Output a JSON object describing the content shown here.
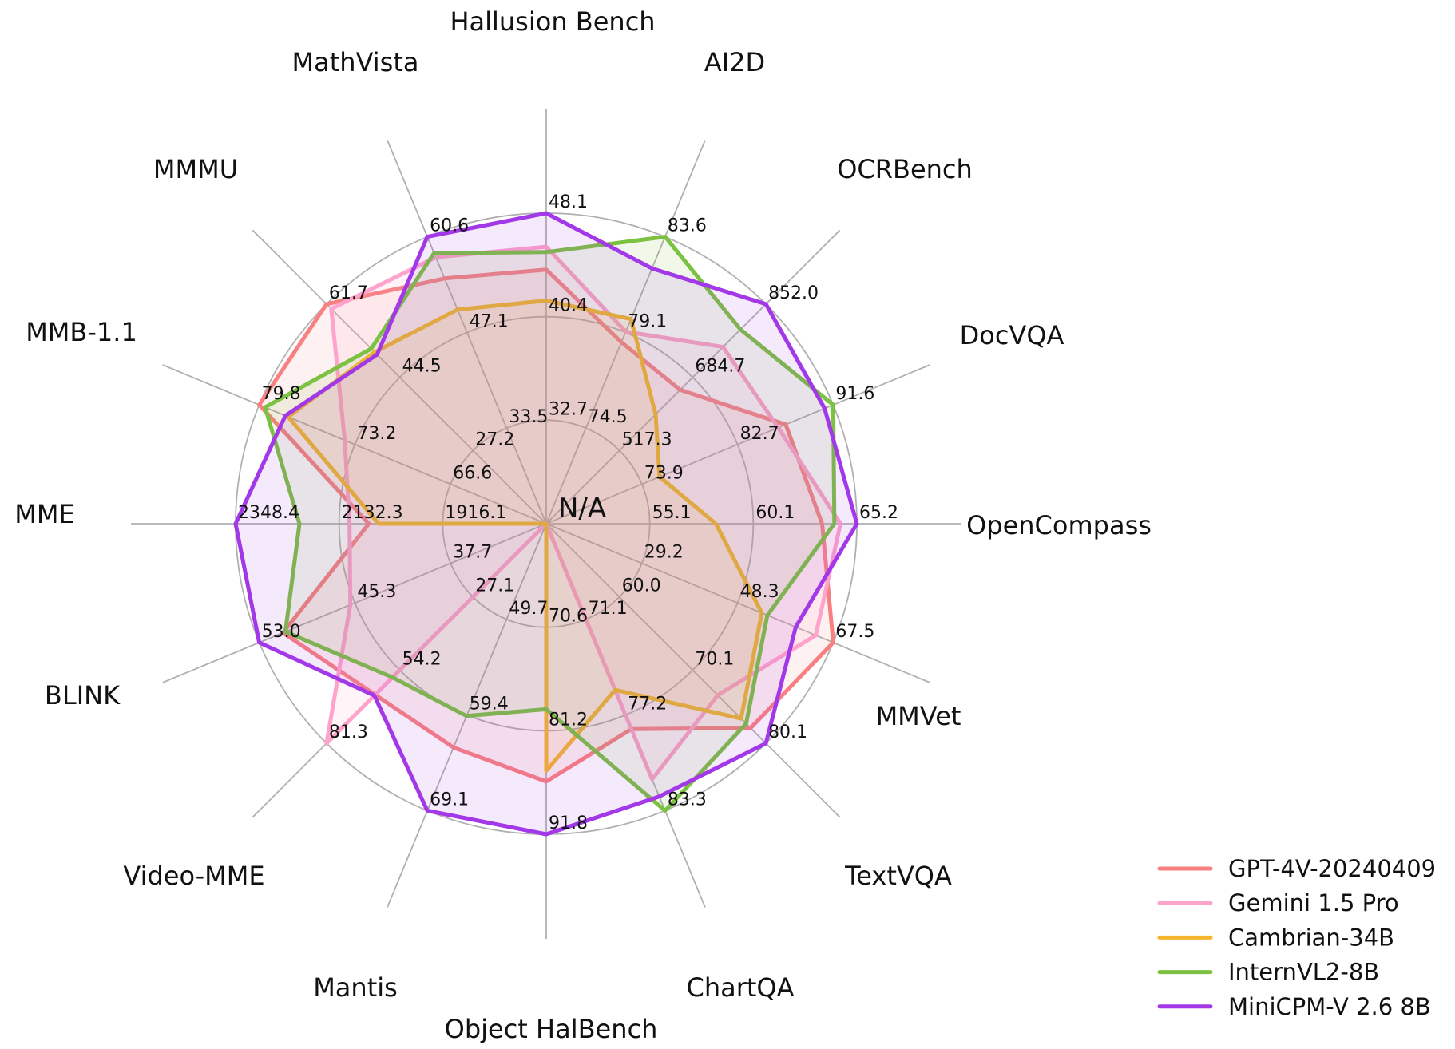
{
  "chart_data": {
    "type": "radar",
    "title": "",
    "center_label": "N/A",
    "grid": {
      "rings": 3,
      "color": "#b0b0b0",
      "spokes": 16
    },
    "legend_position": "bottom-right",
    "axes": [
      {
        "label": "Hallusion Bench",
        "min": 25.0,
        "max": 48.1,
        "ring_labels": [
          "32.7",
          "40.4",
          "48.1"
        ]
      },
      {
        "label": "AI2D",
        "min": 70.0,
        "max": 83.6,
        "ring_labels": [
          "74.5",
          "79.1",
          "83.6"
        ]
      },
      {
        "label": "OCRBench",
        "min": 350.0,
        "max": 852.0,
        "ring_labels": [
          "517.3",
          "684.7",
          "852.0"
        ]
      },
      {
        "label": "DocVQA",
        "min": 65.0,
        "max": 91.6,
        "ring_labels": [
          "73.9",
          "82.7",
          "91.6"
        ]
      },
      {
        "label": "OpenCompass",
        "min": 50.0,
        "max": 65.2,
        "ring_labels": [
          "55.1",
          "60.1",
          "65.2"
        ]
      },
      {
        "label": "MMVet",
        "min": 10.0,
        "max": 67.5,
        "ring_labels": [
          "29.2",
          "48.3",
          "67.5"
        ]
      },
      {
        "label": "TextVQA",
        "min": 50.0,
        "max": 80.1,
        "ring_labels": [
          "60.0",
          "70.1",
          "80.1"
        ]
      },
      {
        "label": "ChartQA",
        "min": 65.0,
        "max": 83.3,
        "ring_labels": [
          "71.1",
          "77.2",
          "83.3"
        ]
      },
      {
        "label": "Object HalBench",
        "min": 60.0,
        "max": 91.8,
        "ring_labels": [
          "70.6",
          "81.2",
          "91.8"
        ]
      },
      {
        "label": "Mantis",
        "min": 40.0,
        "max": 69.1,
        "ring_labels": [
          "49.7",
          "59.4",
          "69.1"
        ]
      },
      {
        "label": "Video-MME",
        "min": 0.0,
        "max": 81.3,
        "ring_labels": [
          "27.1",
          "54.2",
          "81.3"
        ]
      },
      {
        "label": "BLINK",
        "min": 30.0,
        "max": 53.0,
        "ring_labels": [
          "37.7",
          "45.3",
          "53.0"
        ]
      },
      {
        "label": "MME",
        "min": 1700.0,
        "max": 2348.4,
        "ring_labels": [
          "1916.1",
          "2132.3",
          "2348.4"
        ]
      },
      {
        "label": "MMB-1.1",
        "min": 60.0,
        "max": 79.8,
        "ring_labels": [
          "66.6",
          "73.2",
          "79.8"
        ]
      },
      {
        "label": "MMMU",
        "min": 10.0,
        "max": 61.7,
        "ring_labels": [
          "27.2",
          "44.5",
          "61.7"
        ]
      },
      {
        "label": "MathVista",
        "min": 20.0,
        "max": 60.6,
        "ring_labels": [
          "33.5",
          "47.1",
          "60.6"
        ]
      }
    ],
    "series": [
      {
        "name": "GPT-4V-20240409",
        "color": "#F98080",
        "values": [
          43.9,
          78.6,
          656.0,
          87.2,
          63.5,
          67.5,
          78.0,
          78.1,
          86.4,
          62.7,
          63.3,
          51.1,
          2070.2,
          79.8,
          61.7,
          54.7
        ]
      },
      {
        "name": "Gemini 1.5 Pro",
        "color": "#FFA3CC",
        "values": [
          45.6,
          79.1,
          754.0,
          86.5,
          64.4,
          64.0,
          73.5,
          81.3,
          null,
          null,
          81.3,
          45.7,
          2110.6,
          73.9,
          60.6,
          57.7
        ]
      },
      {
        "name": "Cambrian-34B",
        "color": "#F5B52E",
        "values": [
          41.6,
          79.7,
          600.0,
          75.5,
          58.3,
          53.2,
          76.7,
          75.6,
          85.3,
          null,
          null,
          null,
          2049.9,
          77.8,
          50.4,
          50.3
        ]
      },
      {
        "name": "InternVL2-8B",
        "color": "#7CC242",
        "values": [
          45.2,
          83.6,
          794.0,
          91.6,
          64.1,
          54.3,
          77.4,
          83.3,
          79.0,
          59.5,
          56.9,
          50.9,
          2215.1,
          79.4,
          51.2,
          58.3
        ]
      },
      {
        "name": "MiniCPM-V 2.6 8B",
        "color": "#A238E8",
        "values": [
          48.1,
          82.1,
          852.0,
          90.8,
          65.2,
          60.0,
          80.1,
          82.4,
          91.8,
          69.1,
          63.6,
          53.0,
          2348.4,
          78.0,
          49.8,
          60.6
        ]
      }
    ]
  }
}
